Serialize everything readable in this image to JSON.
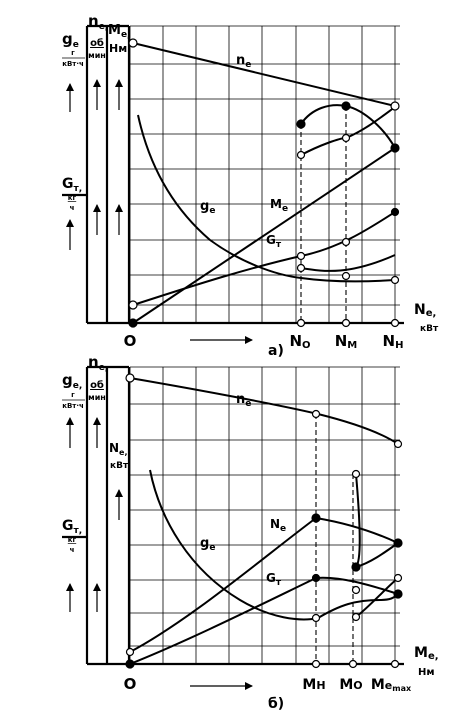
{
  "panel_a": {
    "caption": "а)",
    "axis_labels": {
      "ge": "g",
      "ge_sub": "e",
      "ge_unit_top": "г",
      "ge_unit_bot": "кВт·ч",
      "ne": "n",
      "ne_sub": "e,",
      "ne_unit_top": "об",
      "ne_unit_bot": "мин",
      "me": "M",
      "me_sub": "e,",
      "me_unit": "Нм",
      "gt": "G",
      "gt_sub": "т,",
      "gt_unit_top": "кг",
      "gt_unit_bot": "ч",
      "x": "N",
      "x_sub": "e,",
      "x_unit": "кВт"
    },
    "origin": "O",
    "ticks": [
      "N",
      "N",
      "N"
    ],
    "tick_subs": [
      "O",
      "M",
      "H"
    ],
    "curve_labels": {
      "ne": "n",
      "ne_sub": "e",
      "ge": "g",
      "ge_sub": "e",
      "me": "M",
      "me_sub": "e",
      "gt": "G",
      "gt_sub": "т"
    }
  },
  "panel_b": {
    "caption": "б)",
    "axis_labels": {
      "ge": "g",
      "ge_sub": "e,",
      "ge_unit_top": "г",
      "ge_unit_bot": "кВт·ч",
      "ne": "n",
      "ne_sub": "e,",
      "ne_unit_top": "об",
      "ne_unit_bot": "мин",
      "nn": "N",
      "nn_sub": "e,",
      "nn_unit": "кВт",
      "gt": "G",
      "gt_sub": "т,",
      "gt_unit_top": "кг",
      "gt_unit_bot": "ч",
      "x": "M",
      "x_sub": "e,",
      "x_unit": "Нм"
    },
    "origin": "O",
    "ticks": [
      "M",
      "M",
      "M"
    ],
    "tick_subs": [
      "Н",
      "О",
      "e"
    ],
    "tick_extra": "max",
    "curve_labels": {
      "ne": "n",
      "ne_sub": "e",
      "nn": "N",
      "nn_sub": "e",
      "ge": "g",
      "ge_sub": "e",
      "gt": "G",
      "gt_sub": "т"
    }
  }
}
